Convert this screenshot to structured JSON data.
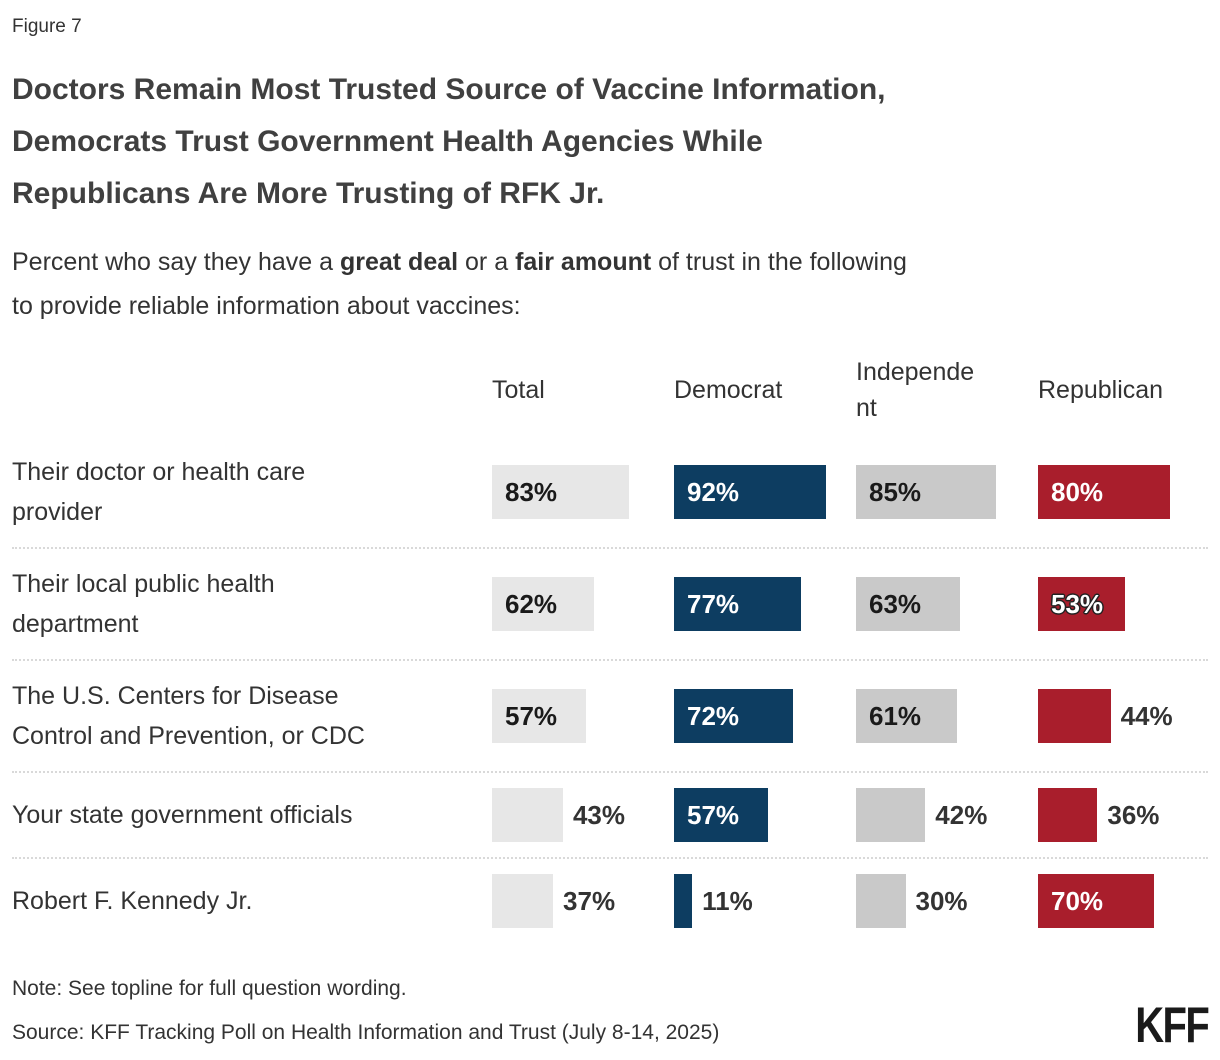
{
  "figure_label": "Figure 7",
  "title_lines": [
    "Doctors Remain Most Trusted Source of Vaccine Information,",
    "Democrats Trust Government Health Agencies While",
    "Republicans Are More Trusting of RFK Jr."
  ],
  "subtitle": {
    "part1": "Percent who say they have a ",
    "bold1": "great deal",
    "part2": " or a ",
    "bold2": "fair amount",
    "part3": " of trust in the following",
    "line2": "to provide reliable information about vaccines:"
  },
  "note": "Note: See topline for full question wording.",
  "source": "Source: KFF Tracking Poll on Health Information and Trust (July 8-14, 2025)",
  "logo": {
    "text": "KFF"
  },
  "colors": {
    "democrat_blue": "#0d3d61",
    "republican_red": "#a91e2c",
    "total_gray": "#e7e7e7",
    "independent_gray": "#c9c9c9",
    "text": "#333333",
    "title": "#404040",
    "separator": "#d9d9d9"
  },
  "chart_data": {
    "type": "bar",
    "orientation": "horizontal",
    "title": "Doctors Remain Most Trusted Source of Vaccine Information, Democrats Trust Government Health Agencies While Republicans Are More Trusting of RFK Jr.",
    "subtitle": "Percent who say they have a great deal or a fair amount of trust in the following to provide reliable information about vaccines:",
    "unit": "%",
    "value_range": [
      0,
      100
    ],
    "grid": "off",
    "legend": "column-headers",
    "categories": [
      "Their doctor or health care provider",
      "Their local public health department",
      "The U.S. Centers for Disease Control and Prevention, or CDC",
      "Your state government officials",
      "Robert F. Kennedy Jr."
    ],
    "series": [
      {
        "name": "Total",
        "color": "#e7e7e7",
        "label_color": "#1a1a1a",
        "values": [
          83,
          62,
          57,
          43,
          37
        ],
        "label_positions": [
          "inside",
          "inside",
          "inside",
          "outside",
          "outside"
        ],
        "outlined": [
          false,
          false,
          false,
          false,
          false
        ]
      },
      {
        "name": "Democrat",
        "color": "#0d3d61",
        "label_color": "#ffffff",
        "values": [
          92,
          77,
          72,
          57,
          11
        ],
        "label_positions": [
          "inside",
          "inside",
          "inside",
          "inside",
          "outside"
        ],
        "outlined": [
          false,
          false,
          false,
          false,
          false
        ]
      },
      {
        "name": "Independent",
        "color": "#c9c9c9",
        "label_color": "#1a1a1a",
        "values": [
          85,
          63,
          61,
          42,
          30
        ],
        "label_positions": [
          "inside",
          "inside",
          "inside",
          "outside",
          "outside"
        ],
        "outlined": [
          false,
          false,
          false,
          false,
          false
        ]
      },
      {
        "name": "Republican",
        "color": "#a91e2c",
        "label_color": "#ffffff",
        "values": [
          80,
          53,
          44,
          36,
          70
        ],
        "label_positions": [
          "inside",
          "inside",
          "outside",
          "outside",
          "inside"
        ],
        "outlined": [
          false,
          true,
          false,
          false,
          false
        ]
      }
    ]
  }
}
